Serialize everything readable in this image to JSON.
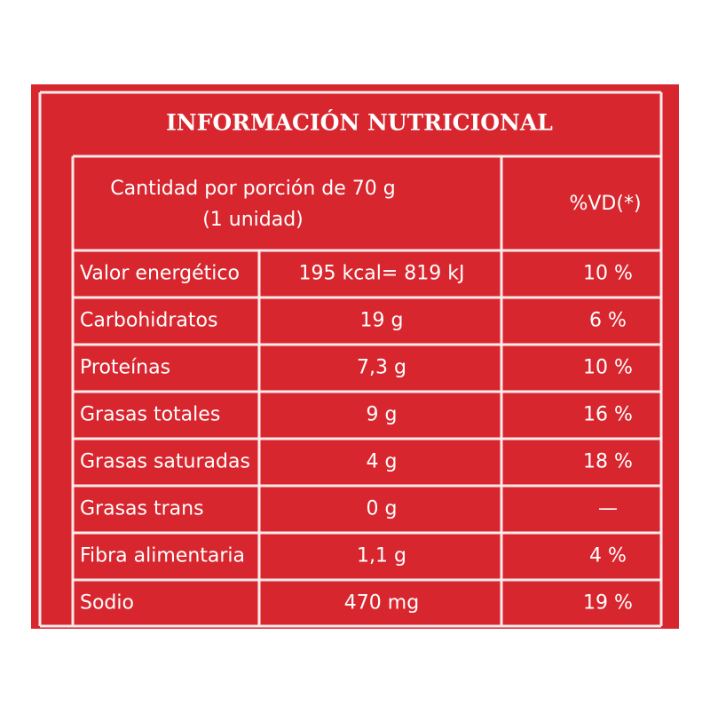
{
  "header": {
    "title": "INFORMACIÓN NUTRICIONAL"
  },
  "table": {
    "columns": [
      "Cantidad por porción de 70 g",
      "(1 unidad)",
      "%VD(*)"
    ],
    "rows": [
      [
        "Valor energético",
        "195 kcal= 819 kJ",
        "10 %"
      ],
      [
        "Carbohidratos",
        "19 g",
        "6 %"
      ],
      [
        "Proteínas",
        "7,3 g",
        "10 %"
      ],
      [
        "Grasas totales",
        "9 g",
        "16 %"
      ],
      [
        "Grasas saturadas",
        "4 g",
        "18 %"
      ],
      [
        "Grasas trans",
        "0 g",
        "—"
      ],
      [
        "Fibra alimentaria",
        "1,1 g",
        "4 %"
      ],
      [
        "Sodio",
        "470 mg",
        "19 %"
      ]
    ]
  }
}
